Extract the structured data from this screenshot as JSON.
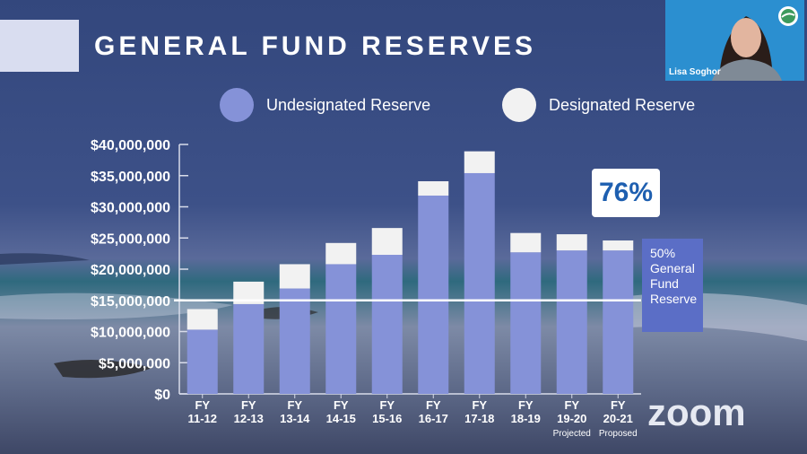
{
  "slide": {
    "title": "GENERAL FUND RESERVES",
    "highlight_value": "76%",
    "reserve_line_label": [
      "50%",
      "General",
      "Fund",
      "Reserve"
    ],
    "watermark": "zoom"
  },
  "webcam": {
    "participant_name": "Lisa Soghor"
  },
  "colors": {
    "undesignated": "#8592d8",
    "designated": "#f2f2f2",
    "reserve_line": "#ffffff",
    "highlight_text": "#1e5fb0",
    "reserve_box": "#5b6ec6"
  },
  "chart_data": {
    "type": "bar",
    "stacked": true,
    "categories": [
      "FY 11-12",
      "FY 12-13",
      "FY 13-14",
      "FY 14-15",
      "FY 15-16",
      "FY 16-17",
      "FY 17-18",
      "FY 18-19",
      "FY 19-20",
      "FY 20-21"
    ],
    "category_lines": [
      [
        "FY",
        "11-12"
      ],
      [
        "FY",
        "12-13"
      ],
      [
        "FY",
        "13-14"
      ],
      [
        "FY",
        "14-15"
      ],
      [
        "FY",
        "15-16"
      ],
      [
        "FY",
        "16-17"
      ],
      [
        "FY",
        "17-18"
      ],
      [
        "FY",
        "18-19"
      ],
      [
        "FY",
        "19-20",
        "Projected"
      ],
      [
        "FY",
        "20-21",
        "Proposed"
      ]
    ],
    "series": [
      {
        "name": "Undesignated Reserve",
        "values": [
          10300000,
          14400000,
          16900000,
          20800000,
          22300000,
          31800000,
          35400000,
          22700000,
          23000000,
          23000000
        ]
      },
      {
        "name": "Designated Reserve",
        "values": [
          3300000,
          3600000,
          3900000,
          3400000,
          4300000,
          2300000,
          3500000,
          3100000,
          2600000,
          1600000
        ]
      }
    ],
    "ylim": [
      0,
      40000000
    ],
    "yticks": [
      0,
      5000000,
      10000000,
      15000000,
      20000000,
      25000000,
      30000000,
      35000000,
      40000000
    ],
    "ytick_labels": [
      "$0",
      "$5,000,000",
      "$10,000,000",
      "$15,000,000",
      "$20,000,000",
      "$25,000,000",
      "$30,000,000",
      "$35,000,000",
      "$40,000,000"
    ],
    "reference_line": {
      "value": 15000000
    },
    "legend": "top",
    "grid": false
  }
}
